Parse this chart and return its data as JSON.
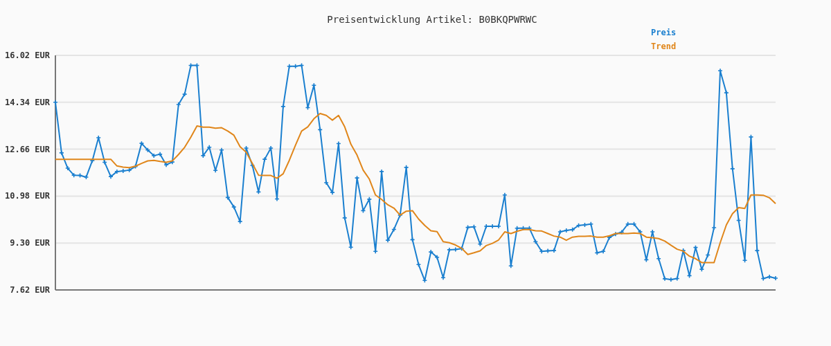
{
  "chart_data": {
    "type": "line",
    "title": "Preisentwicklung Artikel: B0BKQPWRWC",
    "categories": [
      null,
      null,
      null,
      null,
      null,
      null,
      null,
      null,
      null,
      null,
      null,
      null,
      null,
      null,
      null,
      null,
      null,
      null,
      null,
      null,
      null,
      null,
      null,
      null,
      null,
      null,
      null,
      null,
      null,
      null,
      null,
      null,
      null,
      null,
      null,
      null,
      null,
      null,
      null,
      null,
      null,
      null,
      null,
      null,
      null,
      null,
      null,
      null,
      null,
      null,
      null,
      null,
      null,
      null,
      null,
      null,
      null,
      null,
      null,
      null,
      null,
      null,
      null,
      null,
      null,
      null,
      null,
      null,
      null,
      null,
      null,
      null,
      null,
      null,
      null,
      null,
      null,
      null,
      null,
      null,
      null,
      null,
      null,
      null,
      null,
      null,
      null,
      null,
      null,
      null,
      null,
      null,
      null,
      null,
      null,
      null,
      null,
      null,
      null,
      null,
      null,
      null,
      null,
      null,
      null,
      null,
      null,
      null,
      null,
      null,
      null,
      null,
      null,
      null,
      null,
      null,
      null,
      null
    ],
    "series": [
      {
        "name": "Preis",
        "color": "#1a7fcf",
        "marker": "cross",
        "values": [
          14.34,
          12.53,
          11.98,
          11.73,
          11.72,
          11.66,
          12.25,
          13.07,
          12.19,
          11.68,
          11.86,
          11.88,
          11.91,
          12.04,
          12.87,
          12.63,
          12.43,
          12.48,
          12.1,
          12.2,
          14.26,
          14.63,
          15.66,
          15.66,
          12.43,
          12.73,
          11.9,
          12.63,
          10.93,
          10.59,
          10.07,
          12.7,
          12.08,
          11.13,
          12.3,
          12.7,
          10.88,
          14.19,
          15.63,
          15.63,
          15.66,
          14.15,
          14.95,
          13.36,
          11.46,
          11.11,
          12.86,
          10.2,
          9.15,
          11.63,
          10.46,
          10.87,
          9.0,
          11.86,
          9.4,
          9.79,
          10.3,
          12.01,
          9.42,
          8.53,
          7.96,
          8.98,
          8.79,
          8.06,
          9.06,
          9.07,
          9.1,
          9.86,
          9.88,
          9.26,
          9.9,
          9.9,
          9.9,
          11.02,
          8.48,
          9.83,
          9.83,
          9.83,
          9.35,
          9.0,
          9.02,
          9.03,
          9.7,
          9.75,
          9.78,
          9.93,
          9.95,
          9.98,
          8.95,
          9.0,
          9.5,
          9.62,
          9.69,
          9.98,
          9.98,
          9.7,
          8.7,
          9.7,
          8.74,
          8.02,
          7.99,
          8.03,
          9.03,
          8.13,
          9.14,
          8.36,
          8.87,
          9.85,
          15.47,
          14.68,
          11.96,
          10.11,
          8.68,
          13.1,
          9.03,
          8.03,
          8.09,
          8.04
        ]
      },
      {
        "name": "Trend",
        "color": "#e0861a",
        "marker": "none",
        "values": [
          12.3,
          12.3,
          12.3,
          12.3,
          12.3,
          12.3,
          12.3,
          12.3,
          12.3,
          12.3,
          12.06,
          12.02,
          12.0,
          12.05,
          12.15,
          12.24,
          12.26,
          12.22,
          12.19,
          12.24,
          12.47,
          12.73,
          13.09,
          13.49,
          13.45,
          13.45,
          13.41,
          13.43,
          13.31,
          13.16,
          12.75,
          12.55,
          12.15,
          11.73,
          11.72,
          11.72,
          11.62,
          11.78,
          12.26,
          12.8,
          13.31,
          13.46,
          13.75,
          13.94,
          13.87,
          13.7,
          13.87,
          13.46,
          12.84,
          12.45,
          11.91,
          11.59,
          11.02,
          10.86,
          10.67,
          10.55,
          10.3,
          10.44,
          10.46,
          10.16,
          9.93,
          9.74,
          9.71,
          9.35,
          9.31,
          9.23,
          9.11,
          8.89,
          8.95,
          9.02,
          9.21,
          9.29,
          9.41,
          9.7,
          9.64,
          9.72,
          9.78,
          9.78,
          9.74,
          9.73,
          9.64,
          9.55,
          9.51,
          9.4,
          9.51,
          9.54,
          9.54,
          9.55,
          9.51,
          9.51,
          9.56,
          9.64,
          9.64,
          9.64,
          9.66,
          9.64,
          9.51,
          9.49,
          9.46,
          9.37,
          9.22,
          9.08,
          9.01,
          8.83,
          8.74,
          8.6,
          8.6,
          8.6,
          9.31,
          9.95,
          10.35,
          10.57,
          10.54,
          11.02,
          11.02,
          11.01,
          10.92,
          10.71
        ]
      }
    ],
    "ylim": [
      7.62,
      16.02
    ],
    "yticks": [
      {
        "value": 7.62,
        "label": "7.62 EUR"
      },
      {
        "value": 9.3,
        "label": "9.30 EUR"
      },
      {
        "value": 10.98,
        "label": "10.98 EUR"
      },
      {
        "value": 12.66,
        "label": "12.66 EUR"
      },
      {
        "value": 14.34,
        "label": "14.34 EUR"
      },
      {
        "value": 16.02,
        "label": "16.02 EUR"
      }
    ],
    "grid": "y",
    "legend": "top right",
    "line_style": "solid"
  }
}
